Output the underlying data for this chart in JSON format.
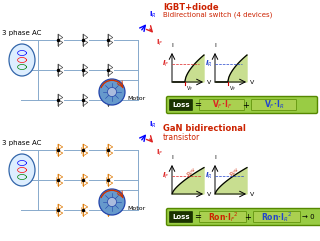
{
  "bg_color": "#ffffff",
  "top_title1": "IGBT+diode",
  "top_title2": "Bidirectional switch (4 devices)",
  "bot_title1": "GaN bidirectional",
  "bot_title2": "transistor",
  "label_3phase": "3 phase AC",
  "label_motor": "Motor",
  "green_fill": "#c8de90",
  "green_box_outer": "#88bb33",
  "green_box_inner": "#aacc55",
  "title_red": "#cc2200",
  "red_color": "#dd2222",
  "blue_color": "#2244cc",
  "orange_color": "#dd7700",
  "igbt_color": "#444444",
  "bus_color": "#88aacc",
  "src_face": "#ddeeff",
  "src_edge": "#3366aa",
  "motor_face": "#6699cc",
  "motor_edge": "#2244aa",
  "motor_arc": "#cc3300",
  "vf_label_color": "#cc0000",
  "ron_color": "#cc2200",
  "IR_blue": "#2244cc"
}
